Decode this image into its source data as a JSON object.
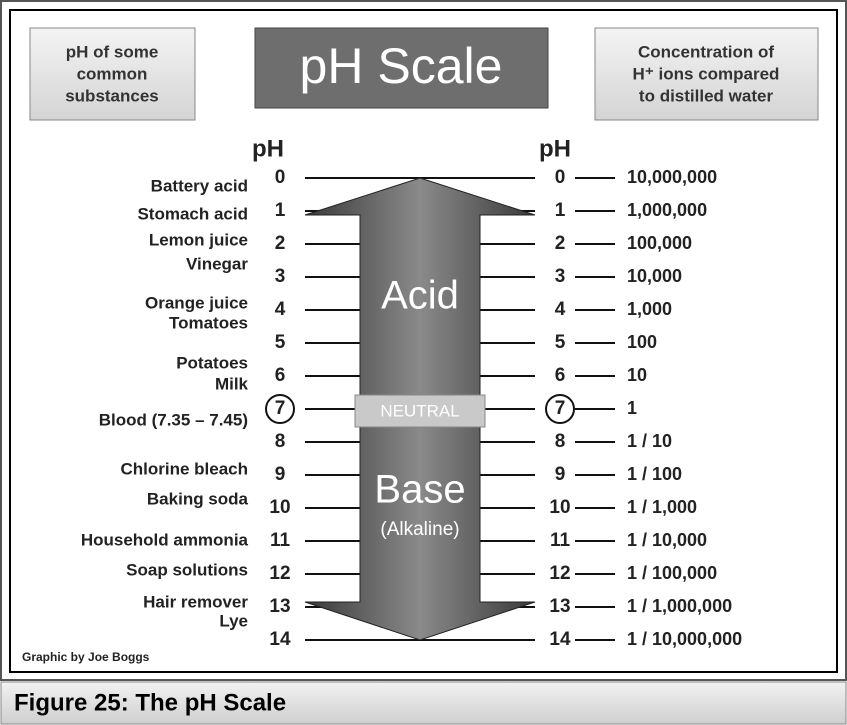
{
  "header": {
    "left_box": [
      "pH of some",
      "common",
      "substances"
    ],
    "title": "pH Scale",
    "right_box": [
      "Concentration of",
      "H⁺ ions compared",
      "to distilled water"
    ]
  },
  "scale": {
    "left_heading": "pH",
    "right_heading": "pH",
    "rows": [
      {
        "ph": 0,
        "concentration": "10,000,000"
      },
      {
        "ph": 1,
        "concentration": "1,000,000"
      },
      {
        "ph": 2,
        "concentration": "100,000"
      },
      {
        "ph": 3,
        "concentration": "10,000"
      },
      {
        "ph": 4,
        "concentration": "1,000"
      },
      {
        "ph": 5,
        "concentration": "100"
      },
      {
        "ph": 6,
        "concentration": "10"
      },
      {
        "ph": 7,
        "concentration": "1"
      },
      {
        "ph": 8,
        "concentration": "1 / 10"
      },
      {
        "ph": 9,
        "concentration": "1 / 100"
      },
      {
        "ph": 10,
        "concentration": "1 / 1,000"
      },
      {
        "ph": 11,
        "concentration": "1 / 10,000"
      },
      {
        "ph": 12,
        "concentration": "1 / 100,000"
      },
      {
        "ph": 13,
        "concentration": "1 / 1,000,000"
      },
      {
        "ph": 14,
        "concentration": "1 / 10,000,000"
      }
    ],
    "arrow": {
      "acid": "Acid",
      "neutral": "NEUTRAL",
      "base": "Base",
      "alkaline": "(Alkaline)"
    }
  },
  "substances": [
    "Battery acid",
    "Stomach acid",
    "Lemon juice",
    "Vinegar",
    "Orange juice",
    "Tomatoes",
    "Potatoes",
    "Milk",
    "Blood (7.35 – 7.45)",
    "Chlorine bleach",
    "Baking soda",
    "Household ammonia",
    "Soap solutions",
    "Hair remover",
    "Lye"
  ],
  "credit": "Graphic by Joe Boggs",
  "caption": "Figure 25:  The pH Scale"
}
